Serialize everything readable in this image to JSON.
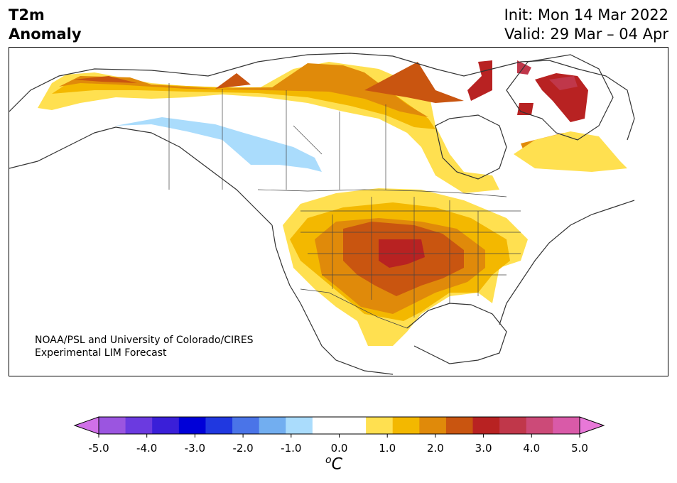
{
  "title": {
    "left_line1": "T2m",
    "left_line2": "Anomaly",
    "init": "Init: Mon 14 Mar 2022",
    "valid": "Valid: 29 Mar – 04 Apr"
  },
  "credit": {
    "line1": "NOAA/PSL and University of Colorado/CIRES",
    "line2": "Experimental LIM Forecast"
  },
  "colorbar": {
    "unit_label": "oC",
    "ticks": [
      "-5.0",
      "-4.0",
      "-3.0",
      "-2.0",
      "-1.0",
      "0.0",
      "1.0",
      "2.0",
      "3.0",
      "4.0",
      "5.0"
    ],
    "colors": [
      "#d070e8",
      "#9b55e0",
      "#6b3ae0",
      "#3a1fd8",
      "#0000d8",
      "#2038e0",
      "#4a74e8",
      "#72aef0",
      "#aadcfc",
      "#ffffff",
      "#ffffff",
      "#ffe050",
      "#f3b800",
      "#e08a0a",
      "#c95510",
      "#b82222",
      "#c0374a",
      "#cc4a78",
      "#d95aa8",
      "#e878d8"
    ]
  },
  "regions": {
    "warm_anomaly": "Central and southern United States",
    "cool_anomaly": "Western Canada",
    "warm_arctic": "Northern Canada and Greenland"
  }
}
